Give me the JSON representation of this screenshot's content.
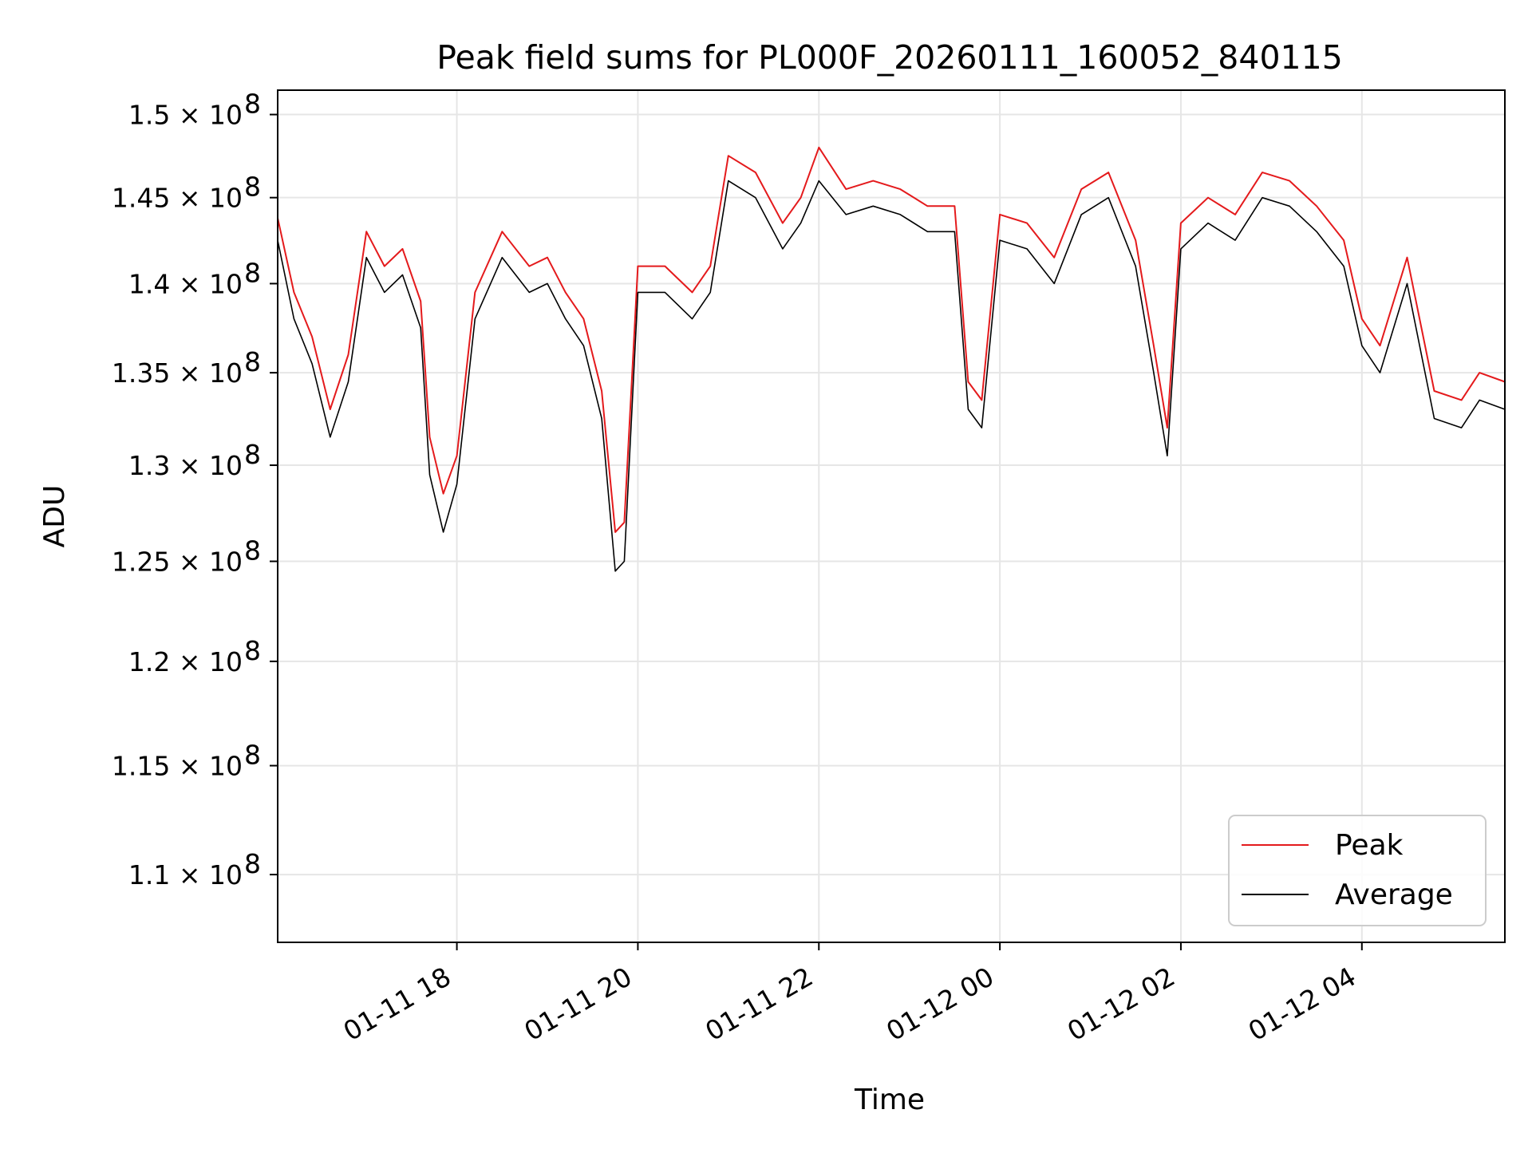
{
  "chart_data": {
    "type": "line",
    "title": "Peak field sums for PL000F_20260111_160052_840115",
    "xlabel": "Time",
    "ylabel": "ADU",
    "grid": true,
    "legend_position": "lower-right",
    "x_axis": {
      "unit": "hours since 2026-01-11 00:00",
      "range": [
        16.02,
        29.58
      ],
      "ticks": [
        {
          "value": 18,
          "label": "01-11 18"
        },
        {
          "value": 20,
          "label": "01-11 20"
        },
        {
          "value": 22,
          "label": "01-11 22"
        },
        {
          "value": 24,
          "label": "01-12 00"
        },
        {
          "value": 26,
          "label": "01-12 02"
        },
        {
          "value": 28,
          "label": "01-12 04"
        }
      ]
    },
    "y_axis": {
      "scale": "log",
      "range": [
        107000000,
        151500000
      ],
      "exponent": "8",
      "ticks": [
        {
          "value": 110000000,
          "label": "1.1 × 10"
        },
        {
          "value": 115000000,
          "label": "1.15 × 10"
        },
        {
          "value": 120000000,
          "label": "1.2 × 10"
        },
        {
          "value": 125000000,
          "label": "1.25 × 10"
        },
        {
          "value": 130000000,
          "label": "1.3 × 10"
        },
        {
          "value": 135000000,
          "label": "1.35 × 10"
        },
        {
          "value": 140000000,
          "label": "1.4 × 10"
        },
        {
          "value": 145000000,
          "label": "1.45 × 10"
        },
        {
          "value": 150000000,
          "label": "1.5 × 10"
        }
      ]
    },
    "series": [
      {
        "name": "Peak",
        "color": "#e41a1c",
        "x": [
          16.02,
          16.2,
          16.4,
          16.6,
          16.8,
          17.0,
          17.2,
          17.4,
          17.6,
          17.7,
          17.85,
          18.0,
          18.2,
          18.5,
          18.8,
          19.0,
          19.2,
          19.4,
          19.6,
          19.75,
          19.85,
          20.0,
          20.3,
          20.6,
          20.8,
          21.0,
          21.3,
          21.6,
          21.8,
          22.0,
          22.3,
          22.6,
          22.9,
          23.2,
          23.5,
          23.65,
          23.8,
          24.0,
          24.3,
          24.6,
          24.9,
          25.2,
          25.5,
          25.7,
          25.85,
          26.0,
          26.3,
          26.6,
          26.9,
          27.2,
          27.5,
          27.8,
          28.0,
          28.2,
          28.5,
          28.8,
          29.1,
          29.3,
          29.58
        ],
        "values": [
          143800000,
          139500000,
          137000000,
          133000000,
          136000000,
          143000000,
          141000000,
          142000000,
          139000000,
          131500000,
          128500000,
          130500000,
          139500000,
          143000000,
          141000000,
          141500000,
          139500000,
          138000000,
          134000000,
          126500000,
          127000000,
          141000000,
          141000000,
          139500000,
          141000000,
          147500000,
          146500000,
          143500000,
          145000000,
          148000000,
          145500000,
          146000000,
          145500000,
          144500000,
          144500000,
          134500000,
          133500000,
          144000000,
          143500000,
          141500000,
          145500000,
          146500000,
          142500000,
          136500000,
          132000000,
          143500000,
          145000000,
          144000000,
          146500000,
          146000000,
          144500000,
          142500000,
          138000000,
          136500000,
          141500000,
          134000000,
          133500000,
          135000000,
          134500000
        ]
      },
      {
        "name": "Average",
        "color": "#000000",
        "x": [
          16.02,
          16.2,
          16.4,
          16.6,
          16.8,
          17.0,
          17.2,
          17.4,
          17.6,
          17.7,
          17.85,
          18.0,
          18.2,
          18.5,
          18.8,
          19.0,
          19.2,
          19.4,
          19.6,
          19.75,
          19.85,
          20.0,
          20.3,
          20.6,
          20.8,
          21.0,
          21.3,
          21.6,
          21.8,
          22.0,
          22.3,
          22.6,
          22.9,
          23.2,
          23.5,
          23.65,
          23.8,
          24.0,
          24.3,
          24.6,
          24.9,
          25.2,
          25.5,
          25.7,
          25.85,
          26.0,
          26.3,
          26.6,
          26.9,
          27.2,
          27.5,
          27.8,
          28.0,
          28.2,
          28.5,
          28.8,
          29.1,
          29.3,
          29.58
        ],
        "values": [
          142500000,
          138000000,
          135500000,
          131500000,
          134500000,
          141500000,
          139500000,
          140500000,
          137500000,
          129500000,
          126500000,
          129000000,
          138000000,
          141500000,
          139500000,
          140000000,
          138000000,
          136500000,
          132500000,
          124500000,
          125000000,
          139500000,
          139500000,
          138000000,
          139500000,
          146000000,
          145000000,
          142000000,
          143500000,
          146000000,
          144000000,
          144500000,
          144000000,
          143000000,
          143000000,
          133000000,
          132000000,
          142500000,
          142000000,
          140000000,
          144000000,
          145000000,
          141000000,
          135000000,
          130500000,
          142000000,
          143500000,
          142500000,
          145000000,
          144500000,
          143000000,
          141000000,
          136500000,
          135000000,
          140000000,
          132500000,
          132000000,
          133500000,
          133000000
        ]
      }
    ]
  }
}
